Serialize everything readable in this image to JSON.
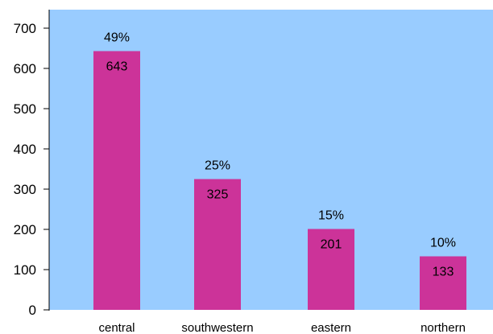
{
  "colors": {
    "plot_background": "#99ccff",
    "bar": "#cc3399",
    "axis": "#000000"
  },
  "chart_data": {
    "type": "bar",
    "title": "",
    "xlabel": "",
    "ylabel": "",
    "ylim": [
      0,
      700
    ],
    "y_ticks": [
      0,
      100,
      200,
      300,
      400,
      500,
      600,
      700
    ],
    "grid": false,
    "categories": [
      "central",
      "southwestern",
      "eastern",
      "northern"
    ],
    "values": [
      643,
      325,
      201,
      133
    ],
    "percent_labels": [
      "49%",
      "25%",
      "15%",
      "10%"
    ]
  }
}
